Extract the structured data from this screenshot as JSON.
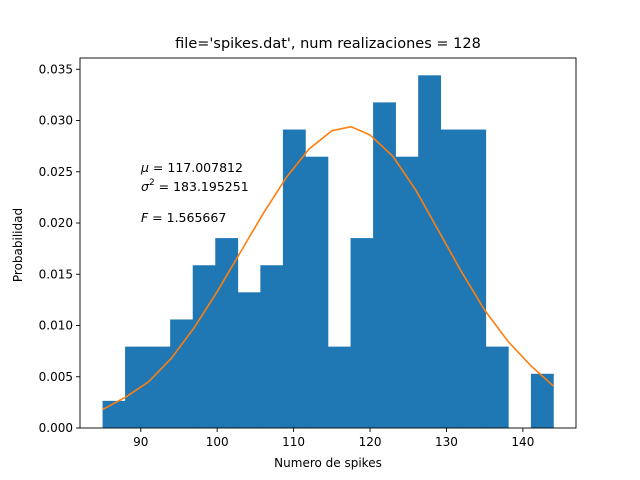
{
  "chart_data": {
    "type": "bar",
    "title": "file='spikes.dat', num realizaciones = 128",
    "xlabel": "Numero de spikes",
    "ylabel": "Probabilidad",
    "xlim": [
      82.05,
      146.95
    ],
    "ylim": [
      0,
      0.0361
    ],
    "xticks": [
      90,
      100,
      110,
      120,
      130,
      140
    ],
    "xtick_labels": [
      "90",
      "100",
      "110",
      "120",
      "130",
      "140"
    ],
    "yticks": [
      0.0,
      0.005,
      0.01,
      0.015,
      0.02,
      0.025,
      0.03,
      0.035
    ],
    "ytick_labels": [
      "0.000",
      "0.005",
      "0.010",
      "0.015",
      "0.020",
      "0.025",
      "0.030",
      "0.035"
    ],
    "grid": false,
    "colors": {
      "bars": "#1f77b4",
      "curve": "#ff7f0e"
    },
    "histogram": {
      "bin_edges": [
        85,
        87.95,
        90.9,
        93.85,
        96.8,
        99.75,
        102.7,
        105.65,
        108.6,
        111.55,
        114.5,
        117.45,
        120.4,
        123.35,
        126.3,
        129.25,
        132.2,
        135.15,
        138.1,
        141.05,
        144
      ],
      "values": [
        0.00265,
        0.00794,
        0.00794,
        0.01059,
        0.01588,
        0.01853,
        0.01324,
        0.01588,
        0.02912,
        0.02647,
        0.00794,
        0.01853,
        0.03177,
        0.02647,
        0.03441,
        0.02912,
        0.02912,
        0.00794,
        0.0,
        0.00529
      ]
    },
    "curve": {
      "x": [
        85,
        88,
        91,
        94,
        97,
        100,
        103,
        106,
        109,
        112,
        115,
        117.5,
        120,
        123,
        126,
        129,
        132,
        135,
        138,
        141,
        144
      ],
      "y": [
        0.0018,
        0.003,
        0.0045,
        0.0068,
        0.0098,
        0.0133,
        0.0171,
        0.0209,
        0.0244,
        0.0272,
        0.029,
        0.0294,
        0.0286,
        0.0265,
        0.0232,
        0.0192,
        0.0152,
        0.0115,
        0.0085,
        0.0061,
        0.0041
      ]
    },
    "annotations": [
      {
        "symbol": "μ",
        "text": " = 117.007812"
      },
      {
        "symbol": "σ",
        "sup": "2",
        "text": " = 183.195251"
      },
      {
        "symbol": "F",
        "text": " = 1.565667"
      }
    ]
  }
}
